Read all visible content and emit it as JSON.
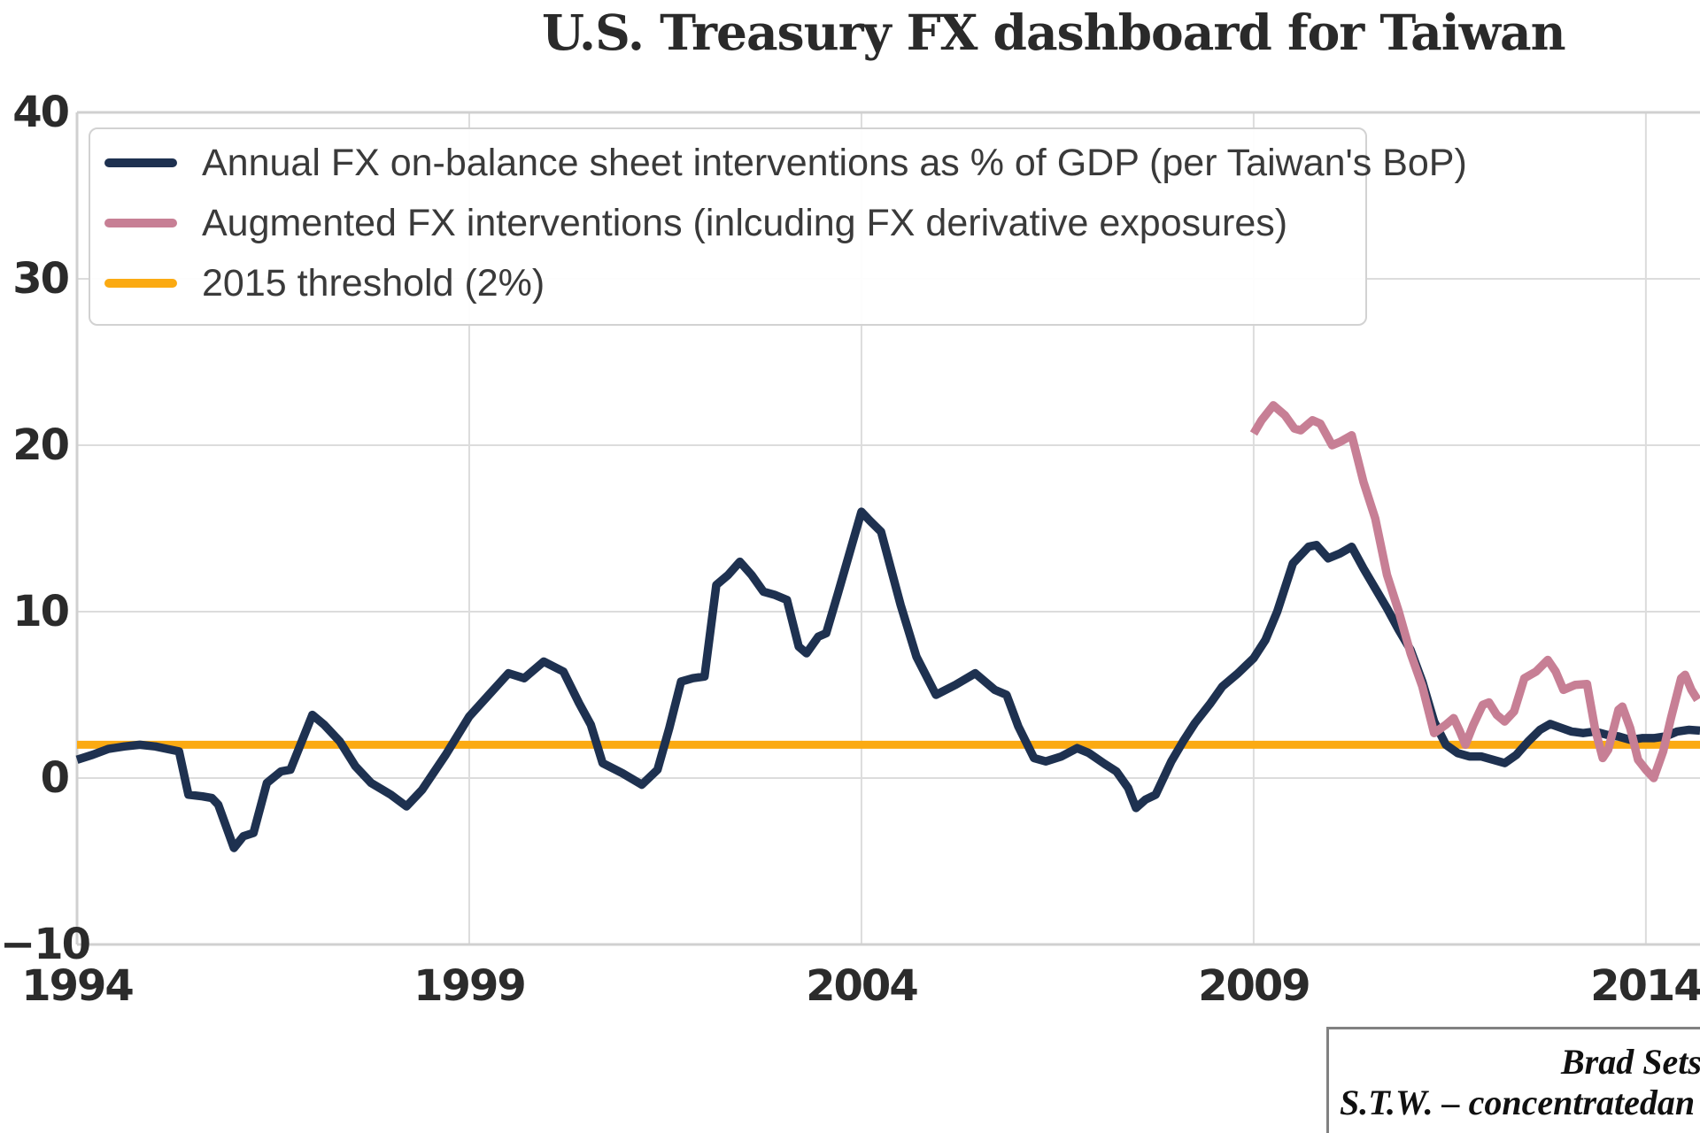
{
  "page": {
    "title": "U.S. Treasury FX dashboard for Taiwan"
  },
  "legend": {
    "items": [
      {
        "label": "Annual FX on-balance sheet interventions as % of GDP (per Taiwan's BoP)",
        "color": "#1e3150"
      },
      {
        "label": "Augmented FX interventions (inlcuding FX derivative exposures)",
        "color": "#c77f95"
      },
      {
        "label": "2015 threshold (2%)",
        "color": "#fbaa12"
      }
    ]
  },
  "watermark": {
    "line1": "Brad Sets",
    "line2": "S.T.W. – concentratedan"
  },
  "chart_data": {
    "type": "line",
    "title": "U.S. Treasury FX dashboard for Taiwan",
    "xlabel": "",
    "ylabel": "",
    "xlim": [
      1994,
      2014.69
    ],
    "ylim": [
      -10,
      40
    ],
    "x_ticks": [
      1994,
      1999,
      2004,
      2009,
      2014
    ],
    "y_ticks": [
      40,
      30,
      20,
      10,
      0,
      -10
    ],
    "grid": true,
    "legend_position": "upper-left",
    "series": [
      {
        "id": "threshold",
        "name": "2015 threshold (2%)",
        "type": "hline",
        "value": 2,
        "color": "#fbaa12"
      },
      {
        "id": "annual-fx",
        "name": "Annual FX on-balance sheet interventions as % of GDP (per Taiwan's BoP)",
        "type": "line",
        "color": "#1e3150",
        "points": [
          [
            1994.0,
            1.1
          ],
          [
            1994.2,
            1.4
          ],
          [
            1994.4,
            1.75
          ],
          [
            1994.6,
            1.9
          ],
          [
            1994.8,
            2.0
          ],
          [
            1995.0,
            1.9
          ],
          [
            1995.15,
            1.75
          ],
          [
            1995.3,
            1.6
          ],
          [
            1995.42,
            -1.0
          ],
          [
            1995.6,
            -1.1
          ],
          [
            1995.72,
            -1.2
          ],
          [
            1995.8,
            -1.6
          ],
          [
            1996.0,
            -4.2
          ],
          [
            1996.12,
            -3.5
          ],
          [
            1996.25,
            -3.3
          ],
          [
            1996.42,
            -0.3
          ],
          [
            1996.6,
            0.4
          ],
          [
            1996.72,
            0.5
          ],
          [
            1997.0,
            3.8
          ],
          [
            1997.15,
            3.2
          ],
          [
            1997.35,
            2.2
          ],
          [
            1997.55,
            0.7
          ],
          [
            1997.75,
            -0.3
          ],
          [
            1998.0,
            -1.0
          ],
          [
            1998.2,
            -1.7
          ],
          [
            1998.4,
            -0.7
          ],
          [
            1998.7,
            1.4
          ],
          [
            1999.0,
            3.7
          ],
          [
            1999.25,
            5.0
          ],
          [
            1999.5,
            6.3
          ],
          [
            1999.7,
            6.0
          ],
          [
            1999.95,
            7.0
          ],
          [
            2000.2,
            6.4
          ],
          [
            2000.4,
            4.5
          ],
          [
            2000.55,
            3.2
          ],
          [
            2000.7,
            0.9
          ],
          [
            2000.95,
            0.3
          ],
          [
            2001.2,
            -0.4
          ],
          [
            2001.4,
            0.5
          ],
          [
            2001.55,
            3.0
          ],
          [
            2001.7,
            5.8
          ],
          [
            2001.85,
            6.0
          ],
          [
            2002.0,
            6.1
          ],
          [
            2002.15,
            11.6
          ],
          [
            2002.3,
            12.2
          ],
          [
            2002.45,
            13.0
          ],
          [
            2002.6,
            12.2
          ],
          [
            2002.75,
            11.2
          ],
          [
            2002.9,
            11.0
          ],
          [
            2003.05,
            10.7
          ],
          [
            2003.2,
            7.9
          ],
          [
            2003.3,
            7.5
          ],
          [
            2003.45,
            8.5
          ],
          [
            2003.55,
            8.7
          ],
          [
            2003.7,
            11.1
          ],
          [
            2004.0,
            16.0
          ],
          [
            2004.1,
            15.5
          ],
          [
            2004.25,
            14.8
          ],
          [
            2004.5,
            10.4
          ],
          [
            2004.7,
            7.3
          ],
          [
            2004.95,
            5.0
          ],
          [
            2005.2,
            5.6
          ],
          [
            2005.45,
            6.3
          ],
          [
            2005.7,
            5.3
          ],
          [
            2005.85,
            5.0
          ],
          [
            2006.0,
            3.1
          ],
          [
            2006.2,
            1.2
          ],
          [
            2006.35,
            1.0
          ],
          [
            2006.55,
            1.3
          ],
          [
            2006.75,
            1.8
          ],
          [
            2006.9,
            1.5
          ],
          [
            2007.1,
            0.85
          ],
          [
            2007.25,
            0.4
          ],
          [
            2007.4,
            -0.6
          ],
          [
            2007.5,
            -1.8
          ],
          [
            2007.62,
            -1.3
          ],
          [
            2007.75,
            -1.0
          ],
          [
            2007.95,
            1.0
          ],
          [
            2008.1,
            2.2
          ],
          [
            2008.25,
            3.3
          ],
          [
            2008.45,
            4.5
          ],
          [
            2008.6,
            5.5
          ],
          [
            2008.8,
            6.3
          ],
          [
            2009.0,
            7.2
          ],
          [
            2009.15,
            8.3
          ],
          [
            2009.3,
            10.0
          ],
          [
            2009.5,
            12.9
          ],
          [
            2009.7,
            13.9
          ],
          [
            2009.8,
            14.0
          ],
          [
            2009.95,
            13.2
          ],
          [
            2010.1,
            13.5
          ],
          [
            2010.25,
            13.9
          ],
          [
            2010.4,
            12.6
          ],
          [
            2010.55,
            11.4
          ],
          [
            2010.7,
            10.2
          ],
          [
            2010.85,
            8.9
          ],
          [
            2011.0,
            7.7
          ],
          [
            2011.15,
            5.8
          ],
          [
            2011.3,
            3.4
          ],
          [
            2011.45,
            2.0
          ],
          [
            2011.6,
            1.5
          ],
          [
            2011.75,
            1.3
          ],
          [
            2011.9,
            1.3
          ],
          [
            2012.05,
            1.1
          ],
          [
            2012.2,
            0.9
          ],
          [
            2012.35,
            1.4
          ],
          [
            2012.5,
            2.2
          ],
          [
            2012.65,
            2.9
          ],
          [
            2012.78,
            3.25
          ],
          [
            2012.9,
            3.05
          ],
          [
            2013.05,
            2.8
          ],
          [
            2013.2,
            2.7
          ],
          [
            2013.35,
            2.8
          ],
          [
            2013.5,
            2.6
          ],
          [
            2013.65,
            2.5
          ],
          [
            2013.8,
            2.3
          ],
          [
            2013.95,
            2.4
          ],
          [
            2014.1,
            2.4
          ],
          [
            2014.25,
            2.5
          ],
          [
            2014.4,
            2.8
          ],
          [
            2014.55,
            2.9
          ],
          [
            2014.69,
            2.85
          ]
        ]
      },
      {
        "id": "augmented-fx",
        "name": "Augmented FX interventions (inlcuding FX derivative exposures)",
        "type": "line",
        "color": "#c77f95",
        "points": [
          [
            2009.0,
            20.7
          ],
          [
            2009.1,
            21.5
          ],
          [
            2009.25,
            22.4
          ],
          [
            2009.4,
            21.8
          ],
          [
            2009.52,
            21.0
          ],
          [
            2009.6,
            20.9
          ],
          [
            2009.75,
            21.5
          ],
          [
            2009.85,
            21.3
          ],
          [
            2010.0,
            20.0
          ],
          [
            2010.1,
            20.2
          ],
          [
            2010.25,
            20.6
          ],
          [
            2010.4,
            17.8
          ],
          [
            2010.55,
            15.6
          ],
          [
            2010.7,
            12.2
          ],
          [
            2010.85,
            10.0
          ],
          [
            2011.0,
            7.5
          ],
          [
            2011.15,
            5.5
          ],
          [
            2011.3,
            2.7
          ],
          [
            2011.45,
            3.2
          ],
          [
            2011.55,
            3.6
          ],
          [
            2011.62,
            2.9
          ],
          [
            2011.7,
            2.0
          ],
          [
            2011.8,
            3.2
          ],
          [
            2011.92,
            4.4
          ],
          [
            2012.0,
            4.55
          ],
          [
            2012.1,
            3.8
          ],
          [
            2012.2,
            3.4
          ],
          [
            2012.32,
            4.0
          ],
          [
            2012.45,
            6.0
          ],
          [
            2012.6,
            6.4
          ],
          [
            2012.75,
            7.1
          ],
          [
            2012.85,
            6.4
          ],
          [
            2012.95,
            5.3
          ],
          [
            2013.1,
            5.6
          ],
          [
            2013.25,
            5.65
          ],
          [
            2013.35,
            3.0
          ],
          [
            2013.45,
            1.2
          ],
          [
            2013.52,
            1.7
          ],
          [
            2013.65,
            4.1
          ],
          [
            2013.7,
            4.3
          ],
          [
            2013.8,
            3.0
          ],
          [
            2013.9,
            1.1
          ],
          [
            2014.0,
            0.5
          ],
          [
            2014.1,
            0.0
          ],
          [
            2014.22,
            1.6
          ],
          [
            2014.32,
            3.6
          ],
          [
            2014.45,
            6.0
          ],
          [
            2014.5,
            6.2
          ],
          [
            2014.58,
            5.3
          ],
          [
            2014.66,
            4.7
          ]
        ]
      }
    ]
  }
}
